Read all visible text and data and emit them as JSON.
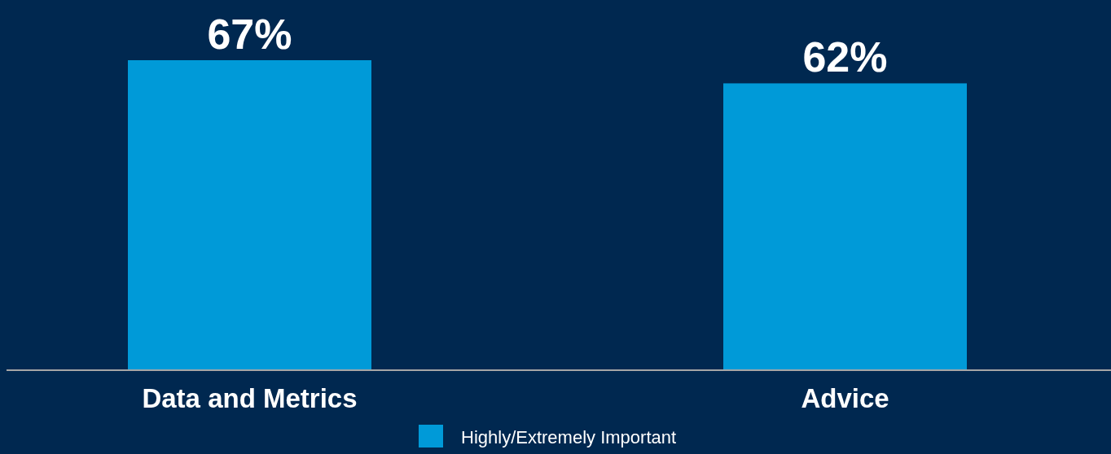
{
  "chart_data": {
    "type": "bar",
    "categories": [
      "Data and Metrics",
      "Advice"
    ],
    "series": [
      {
        "name": "Highly/Extremely Important",
        "color": "#009ad8",
        "values": [
          67,
          62
        ],
        "value_labels": [
          "67%",
          "62%"
        ]
      }
    ],
    "legend": "bottom"
  }
}
